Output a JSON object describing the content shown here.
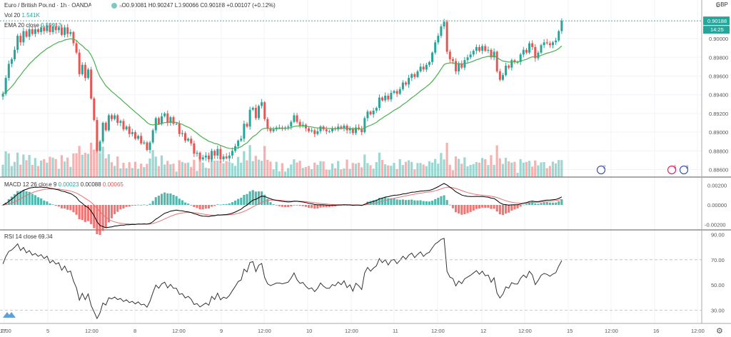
{
  "header": {
    "symbol_title": "Euro / British Pound · 1h · OANDA",
    "ohlc": "O0.90081 H0.90247 L0.90066 C0.90188 +0.00107 (+0.12%)",
    "vol_label": "Vol 20",
    "vol_value": "1.541K",
    "ema_label": "EMA 20 close",
    "ema_value": "0.89913",
    "currency": "GBP",
    "corner": "C"
  },
  "price_scale": {
    "ticks": [
      "0.90000",
      "0.89800",
      "0.89600",
      "0.89400",
      "0.89200",
      "0.89000",
      "0.88800",
      "0.88600"
    ],
    "last_price": "0.90188",
    "countdown": "14:25"
  },
  "macd": {
    "label": "MACD 12 26 close 9",
    "v1": "0.00023",
    "v2": "0.00088",
    "v3": "0.00065",
    "ticks": [
      "0.00200",
      "0.00000",
      "-0.00200"
    ]
  },
  "rsi": {
    "label": "RSI 14 close",
    "value": "69.34",
    "ticks": [
      "90.00",
      "70.00",
      "50.00",
      "30.00"
    ]
  },
  "time_axis": [
    "12:00",
    "5",
    "12:00",
    "8",
    "12:00",
    "9",
    "12:00",
    "10",
    "12:00",
    "11",
    "12:00",
    "12",
    "12:00",
    "15",
    "12:00",
    "16",
    "12:00",
    "17"
  ],
  "event_badges": [
    "2",
    "5",
    "3"
  ],
  "colors": {
    "up": "#26a69a",
    "down": "#ef5350",
    "ema": "#4caf50",
    "macd": "#000000",
    "signal": "#e57373",
    "rsi": "#333333"
  },
  "chart_data": {
    "type": "candlestick",
    "title": "Euro / British Pound · 1h · OANDA",
    "ylim": [
      0.8852,
      0.9026
    ],
    "closes": [
      0.8941,
      0.8958,
      0.8973,
      0.8978,
      0.8988,
      0.9003,
      0.8996,
      0.9008,
      0.9002,
      0.901,
      0.9005,
      0.901,
      0.9007,
      0.9012,
      0.9008,
      0.9014,
      0.9007,
      0.9013,
      0.9009,
      0.9012,
      0.9004,
      0.9012,
      0.9005,
      0.9007,
      0.8995,
      0.8985,
      0.8962,
      0.8972,
      0.8958,
      0.8967,
      0.8936,
      0.8913,
      0.888,
      0.889,
      0.891,
      0.8902,
      0.8918,
      0.8914,
      0.8918,
      0.891,
      0.8912,
      0.8903,
      0.8906,
      0.8898,
      0.89,
      0.8893,
      0.8896,
      0.8888,
      0.8889,
      0.8881,
      0.8889,
      0.8902,
      0.8915,
      0.8909,
      0.8917,
      0.892,
      0.891,
      0.8916,
      0.8909,
      0.8909,
      0.8898,
      0.8899,
      0.8891,
      0.8893,
      0.8888,
      0.8877,
      0.8878,
      0.8871,
      0.8873,
      0.8875,
      0.8871,
      0.888,
      0.8875,
      0.8882,
      0.8871,
      0.8874,
      0.8872,
      0.8875,
      0.888,
      0.8885,
      0.8891,
      0.8893,
      0.8909,
      0.8906,
      0.8924,
      0.8926,
      0.8915,
      0.8928,
      0.8932,
      0.8914,
      0.8904,
      0.8901,
      0.8903,
      0.8905,
      0.8905,
      0.8904,
      0.8905,
      0.8906,
      0.8911,
      0.8918,
      0.8911,
      0.8907,
      0.8908,
      0.8904,
      0.8901,
      0.8902,
      0.8898,
      0.8901,
      0.8906,
      0.8903,
      0.8901,
      0.8901,
      0.8904,
      0.8903,
      0.8906,
      0.8904,
      0.8907,
      0.8902,
      0.8904,
      0.8899,
      0.8905,
      0.8903,
      0.89,
      0.8915,
      0.8922,
      0.8919,
      0.8923,
      0.8926,
      0.8937,
      0.8934,
      0.8939,
      0.8935,
      0.8942,
      0.8944,
      0.8941,
      0.8946,
      0.8953,
      0.8951,
      0.8958,
      0.8962,
      0.8959,
      0.8965,
      0.897,
      0.8967,
      0.8972,
      0.8975,
      0.8985,
      0.8996,
      0.9003,
      0.9013,
      0.9018,
      0.8986,
      0.8978,
      0.8976,
      0.8965,
      0.8973,
      0.8969,
      0.8977,
      0.898,
      0.8983,
      0.8987,
      0.8991,
      0.8987,
      0.8992,
      0.8987,
      0.8988,
      0.898,
      0.8986,
      0.8965,
      0.8956,
      0.8961,
      0.8971,
      0.8969,
      0.8977,
      0.8975,
      0.8975,
      0.8983,
      0.8988,
      0.8985,
      0.8995,
      0.8991,
      0.8979,
      0.8985,
      0.8993,
      0.8996,
      0.8995,
      0.8993,
      0.8996,
      0.8998,
      0.9008,
      0.9019
    ],
    "ema_last": 0.89913,
    "macd": {
      "macd": 0.00023,
      "signal": 0.00088,
      "histogram": 0.00065,
      "ylim": [
        -0.0026,
        0.0026
      ]
    },
    "rsi": {
      "last": 69.34,
      "ylim": [
        20,
        92
      ],
      "levels": [
        70,
        30
      ]
    }
  }
}
